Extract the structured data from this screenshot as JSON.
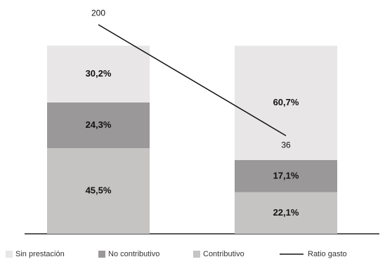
{
  "chart_data": {
    "type": "bar",
    "categories": [
      null,
      null
    ],
    "ylim": [
      0,
      100
    ],
    "y2lim": [
      -109,
      169
    ],
    "stacked": true,
    "series": [
      {
        "name": "Contributivo",
        "color": "#c6c3c3",
        "values": [
          45.5,
          22.1
        ],
        "value_labels": [
          "45,5%",
          "22,1%"
        ]
      },
      {
        "name": "No contributivo",
        "color": "#9a9898",
        "values": [
          24.3,
          17.1
        ],
        "value_labels": [
          "24,3%",
          "17,1%"
        ]
      },
      {
        "name": "Sin prestación",
        "color": "#e8e6e6",
        "values": [
          30.2,
          60.7
        ],
        "value_labels": [
          "30,2%",
          "60,7%"
        ]
      },
      {
        "name": "Ratio gasto",
        "type": "line",
        "axis": "y2",
        "color": "#111111",
        "values": [
          200,
          36
        ]
      }
    ]
  }
}
